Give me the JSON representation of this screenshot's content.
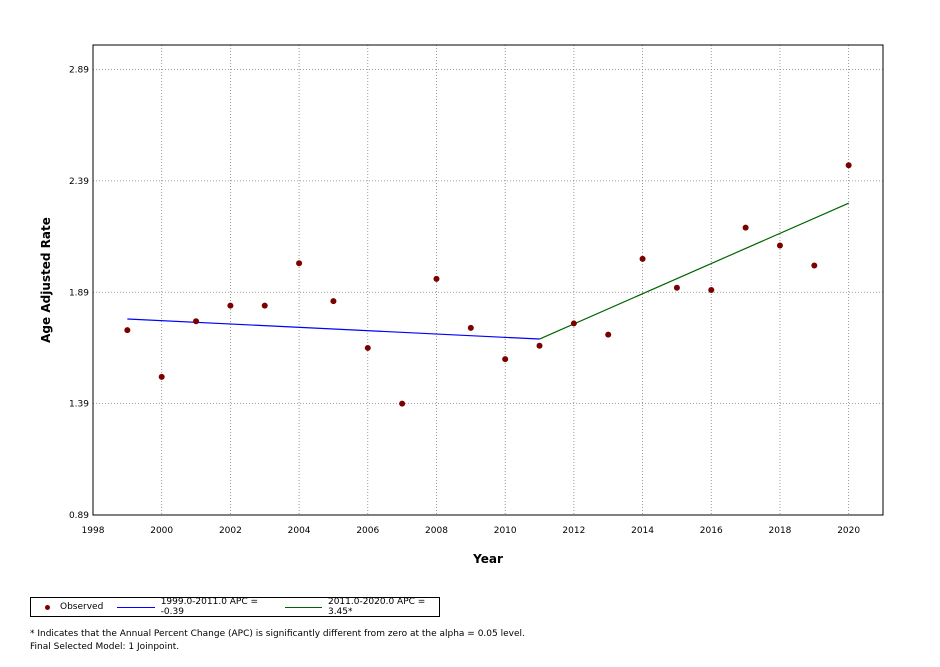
{
  "chart_data": {
    "type": "scatter",
    "xlabel": "Year",
    "ylabel": "Age Adjusted Rate",
    "xlim": [
      1998,
      2021
    ],
    "ylim": [
      0.89,
      3.0
    ],
    "xticks": [
      "1998",
      "2000",
      "2002",
      "2004",
      "2006",
      "2008",
      "2010",
      "2012",
      "2014",
      "2016",
      "2018",
      "2020"
    ],
    "yticks": [
      "0.89",
      "1.39",
      "1.89",
      "2.39",
      "2.89"
    ],
    "grid": true,
    "observed": {
      "name": "Observed",
      "color": "#7B0000",
      "x": [
        1999,
        2000,
        2001,
        2002,
        2003,
        2004,
        2005,
        2006,
        2007,
        2008,
        2009,
        2010,
        2011,
        2012,
        2013,
        2014,
        2015,
        2016,
        2017,
        2018,
        2019,
        2020
      ],
      "y": [
        1.72,
        1.51,
        1.76,
        1.83,
        1.83,
        2.02,
        1.85,
        1.64,
        1.39,
        1.95,
        1.73,
        1.59,
        1.65,
        1.75,
        1.7,
        2.04,
        1.91,
        1.9,
        2.18,
        2.1,
        2.01,
        2.46
      ]
    },
    "series": [
      {
        "name": "1999.0-2011.0 APC  = -0.39",
        "color": "#0000FF",
        "x": [
          1999,
          2011
        ],
        "y": [
          1.77,
          1.68
        ]
      },
      {
        "name": "2011.0-2020.0 APC  =  3.45*",
        "color": "#006400",
        "x": [
          2011,
          2020
        ],
        "y": [
          1.68,
          2.29
        ]
      }
    ]
  },
  "notes": {
    "line1": "* Indicates that the Annual Percent Change (APC) is significantly different from zero at the alpha = 0.05 level.",
    "line2": "Final Selected Model: 1 Joinpoint."
  }
}
